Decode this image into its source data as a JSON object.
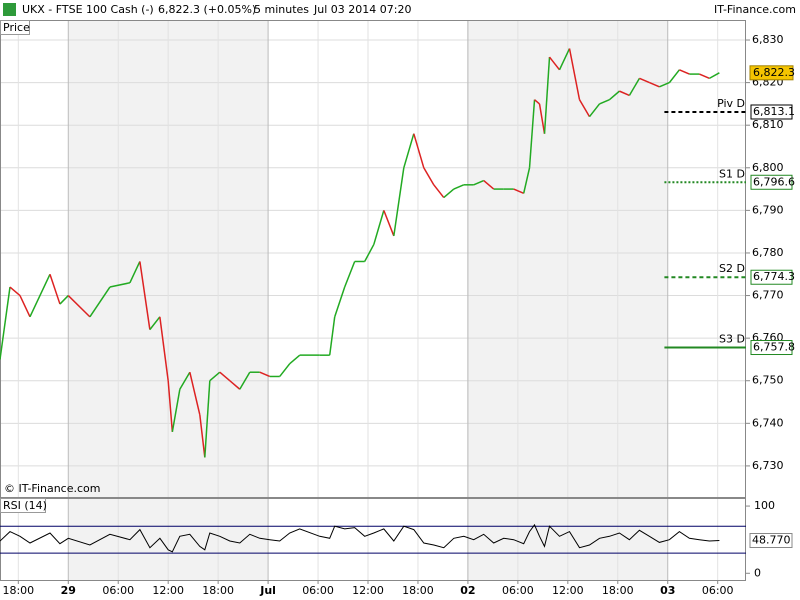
{
  "chart_data": {
    "type": "line",
    "header": {
      "symbol": "UKX - FTSE 100 Cash (-)",
      "quote": "6,822.3 (+0.05%)",
      "interval": "5 minutes",
      "date": "Jul 03 2014 07:20",
      "brand": "IT-Finance.com"
    },
    "panel_label": "Price",
    "copyright": "© IT-Finance.com",
    "x": [
      -8.2,
      -7,
      -5.8,
      -4.6,
      -2.2,
      -1,
      0,
      2.6,
      5,
      7.4,
      8.6,
      9.8,
      11,
      12,
      12.5,
      13.4,
      14.6,
      15.8,
      16.4,
      17,
      18.2,
      19.4,
      20.6,
      21.8,
      23,
      24.2,
      25.4,
      26.6,
      27.8,
      30.2,
      31.4,
      32,
      33.2,
      34.4,
      35.6,
      36.7,
      37.9,
      39.1,
      40.3,
      41.5,
      42.7,
      43.9,
      45.1,
      46.3,
      47.5,
      48.7,
      49.9,
      51.1,
      52.3,
      53.5,
      54.7,
      55.4,
      56,
      56.6,
      57.2,
      57.8,
      59,
      60.2,
      61.4,
      62.6,
      63.8,
      65,
      66.2,
      67.4,
      68.6,
      69.8,
      71,
      72.2,
      73.4,
      74.6,
      75.8,
      77,
      78.2
    ],
    "series": [
      {
        "name": "UKX",
        "up_color": "#22aa22",
        "down_color": "#dd2222",
        "values": [
          6755,
          6772,
          6770,
          6765,
          6775,
          6768,
          6770,
          6765,
          6772,
          6773,
          6778,
          6762,
          6765,
          6750,
          6738,
          6748,
          6752,
          6742,
          6732,
          6750,
          6752,
          6750,
          6748,
          6752,
          6752,
          6751,
          6751,
          6754,
          6756,
          6756,
          6756,
          6765,
          6772,
          6778,
          6778,
          6782,
          6790,
          6784,
          6800,
          6808,
          6800,
          6796,
          6793,
          6795,
          6796,
          6796,
          6797,
          6795,
          6795,
          6795,
          6794,
          6800,
          6816,
          6815,
          6808,
          6826,
          6823,
          6828,
          6816,
          6812,
          6815,
          6816,
          6818,
          6817,
          6821,
          6820,
          6819,
          6820,
          6823,
          6822,
          6822,
          6821,
          6822.3
        ]
      }
    ],
    "last": {
      "value": 6822.3,
      "label": "6,822.3",
      "color": "#f5c400"
    },
    "xlim": [
      -8.2,
      81.4
    ],
    "xticks": [
      {
        "value": -6,
        "label": "18:00"
      },
      {
        "value": 0,
        "label": "29"
      },
      {
        "value": 6,
        "label": "06:00"
      },
      {
        "value": 12,
        "label": "12:00"
      },
      {
        "value": 18,
        "label": "18:00"
      },
      {
        "value": 24,
        "label": "Jul"
      },
      {
        "value": 30,
        "label": "06:00"
      },
      {
        "value": 36,
        "label": "12:00"
      },
      {
        "value": 42,
        "label": "18:00"
      },
      {
        "value": 48,
        "label": "02"
      },
      {
        "value": 54,
        "label": "06:00"
      },
      {
        "value": 60,
        "label": "12:00"
      },
      {
        "value": 66,
        "label": "18:00"
      },
      {
        "value": 72,
        "label": "03"
      },
      {
        "value": 78,
        "label": "06:00"
      }
    ],
    "ylim": [
      6722.7,
      6834.7
    ],
    "yticks": [
      {
        "value": 6730,
        "label": "6,730"
      },
      {
        "value": 6740,
        "label": "6,740"
      },
      {
        "value": 6750,
        "label": "6,750"
      },
      {
        "value": 6760,
        "label": "6,760"
      },
      {
        "value": 6770,
        "label": "6,770"
      },
      {
        "value": 6780,
        "label": "6,780"
      },
      {
        "value": 6790,
        "label": "6,790"
      },
      {
        "value": 6800,
        "label": "6,800"
      },
      {
        "value": 6810,
        "label": "6,810"
      },
      {
        "value": 6820,
        "label": "6,820"
      },
      {
        "value": 6830,
        "label": "6,830"
      }
    ],
    "levels_from": 71.6,
    "levels": [
      {
        "name": "Piv D",
        "value": 6813.1,
        "label": "6,813.1",
        "color": "#000000",
        "dash": "4,3"
      },
      {
        "name": "S1 D",
        "value": 6796.6,
        "label": "6,796.6",
        "color": "#228822",
        "dash": "2,2"
      },
      {
        "name": "S2 D",
        "value": 6774.3,
        "label": "6,774.3",
        "color": "#228822",
        "dash": "4,3"
      },
      {
        "name": "S3 D",
        "value": 6757.8,
        "label": "6,757.8",
        "color": "#228822",
        "dash": "none"
      }
    ],
    "rsi": {
      "name": "RSI (14)",
      "color": "#000000",
      "values": [
        48,
        62,
        55,
        45,
        60,
        44,
        52,
        42,
        58,
        50,
        65,
        38,
        52,
        35,
        32,
        55,
        58,
        40,
        35,
        60,
        55,
        48,
        45,
        58,
        52,
        50,
        48,
        60,
        66,
        55,
        52,
        70,
        66,
        68,
        55,
        60,
        66,
        48,
        70,
        65,
        45,
        42,
        38,
        52,
        55,
        50,
        58,
        45,
        52,
        50,
        44,
        62,
        72,
        55,
        40,
        70,
        55,
        62,
        38,
        42,
        52,
        55,
        60,
        50,
        64,
        55,
        46,
        50,
        62,
        52,
        50,
        48,
        48.77
      ],
      "last": {
        "value": 48.77,
        "label": "48.770"
      },
      "ylim": [
        -10,
        112
      ],
      "yticks": [
        0,
        100
      ],
      "bands": [
        70,
        30
      ],
      "band_color": "#000066"
    },
    "grid": true
  }
}
